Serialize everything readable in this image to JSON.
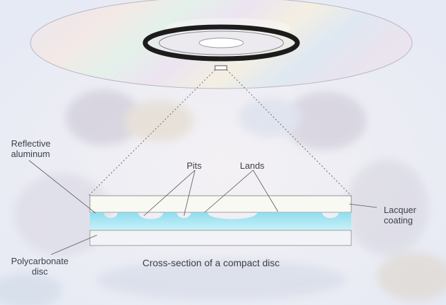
{
  "labels": {
    "reflective_line1": "Reflective",
    "reflective_line2": "aluminum",
    "pits": "Pits",
    "lands": "Lands",
    "lacquer_line1": "Lacquer",
    "lacquer_line2": "coating",
    "polycarbonate_line1": "Polycarbonate",
    "polycarbonate_line2": "disc",
    "caption": "Cross-section of a compact disc"
  },
  "colors": {
    "background": "#eef0f6",
    "disc_surface": "#dedbe6",
    "disc_ring": "#1c1c1c",
    "polycarbonate": "#a9e6f4",
    "lacquer": "#f8f9f2",
    "leader_lines": "#555555",
    "text": "#3b3f4a"
  },
  "icons": {
    "disc": "compact-disc-illustration",
    "texture": "light-refraction-texture"
  }
}
